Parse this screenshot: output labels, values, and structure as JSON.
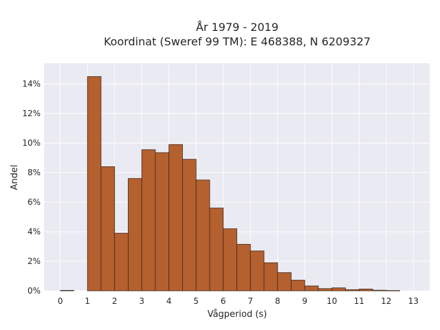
{
  "chart_data": {
    "type": "bar",
    "title": "År 1979 - 2019",
    "subtitle": "Koordinat (Sweref 99 TM): E 468388, N 6209327",
    "xlabel": "Vågperiod (s)",
    "ylabel": "Andel",
    "bin_width": 0.5,
    "bin_starts": [
      0,
      1,
      1.5,
      2,
      2.5,
      3,
      3.5,
      4,
      4.5,
      5,
      5.5,
      6,
      6.5,
      7,
      7.5,
      8,
      8.5,
      9,
      9.5,
      10,
      10.5,
      11,
      11.5,
      12
    ],
    "values": [
      0.0003,
      0.145,
      0.084,
      0.039,
      0.076,
      0.0955,
      0.0935,
      0.099,
      0.089,
      0.075,
      0.056,
      0.042,
      0.0315,
      0.027,
      0.019,
      0.0123,
      0.0072,
      0.0033,
      0.0015,
      0.002,
      0.0008,
      0.0012,
      0.0004,
      0.0002
    ],
    "xlim": [
      -0.6,
      13.6
    ],
    "ylim": [
      0,
      0.154
    ],
    "x_ticks": [
      "0",
      "1",
      "2",
      "3",
      "4",
      "5",
      "6",
      "7",
      "8",
      "9",
      "10",
      "11",
      "12",
      "13"
    ],
    "y_ticks": [
      "0%",
      "2%",
      "4%",
      "6%",
      "8%",
      "10%",
      "12%",
      "14%"
    ],
    "bar_color": "#b5602f",
    "bar_edge_color": "#3d2a1f",
    "background_color": "#eaeaf2",
    "grid": true
  }
}
